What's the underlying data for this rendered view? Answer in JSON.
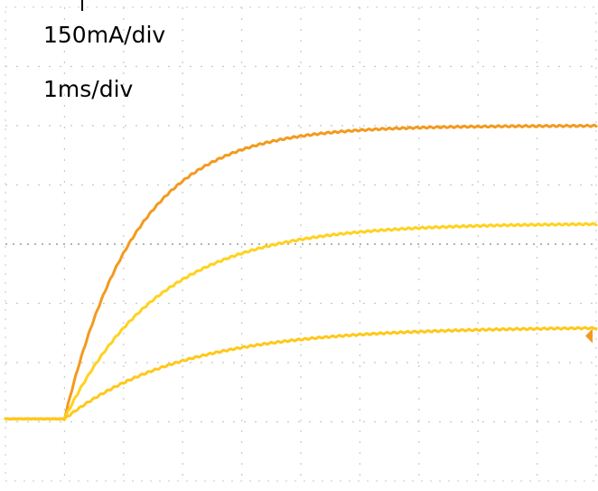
{
  "chart_data": {
    "type": "line",
    "scale_labels": {
      "current": "150mA/div",
      "time": "1ms/div"
    },
    "grid": true,
    "grid_style": "dotted",
    "divisions": {
      "x": 10,
      "y": 8
    },
    "x_unit": "div",
    "y_unit": "div",
    "xlim": [
      0,
      10
    ],
    "ylim": [
      0,
      8
    ],
    "trigger_x": 1.0,
    "baseline_div": 1.05,
    "series": [
      {
        "color": "#f39a1e",
        "baseline": 1.05,
        "final": 6.0,
        "tau_div": 1.2,
        "points": [
          [
            0,
            1.05
          ],
          [
            1,
            1.05
          ],
          [
            2,
            3.1
          ],
          [
            3,
            4.6
          ],
          [
            4,
            5.45
          ],
          [
            5,
            5.75
          ],
          [
            6,
            5.9
          ],
          [
            7,
            5.95
          ],
          [
            8,
            5.98
          ],
          [
            10,
            6.0
          ]
        ]
      },
      {
        "color": "#ffd21f",
        "baseline": 1.05,
        "final": 4.35,
        "tau_div": 1.6,
        "points": [
          [
            0,
            1.05
          ],
          [
            1,
            1.05
          ],
          [
            2,
            2.55
          ],
          [
            3,
            3.3
          ],
          [
            4,
            3.75
          ],
          [
            5,
            4.05
          ],
          [
            6,
            4.2
          ],
          [
            7,
            4.27
          ],
          [
            8,
            4.3
          ],
          [
            10,
            4.35
          ]
        ]
      },
      {
        "color": "#ffc81a",
        "baseline": 1.05,
        "final": 2.6,
        "tau_div": 2.0,
        "points": [
          [
            0,
            1.05
          ],
          [
            1,
            1.05
          ],
          [
            2,
            1.6
          ],
          [
            3,
            1.95
          ],
          [
            4,
            2.2
          ],
          [
            5,
            2.4
          ],
          [
            6,
            2.5
          ],
          [
            7,
            2.55
          ],
          [
            8,
            2.58
          ],
          [
            10,
            2.6
          ]
        ]
      }
    ],
    "colors": {
      "grid": "#c8c8c8",
      "marker": "#f39a1e"
    }
  }
}
